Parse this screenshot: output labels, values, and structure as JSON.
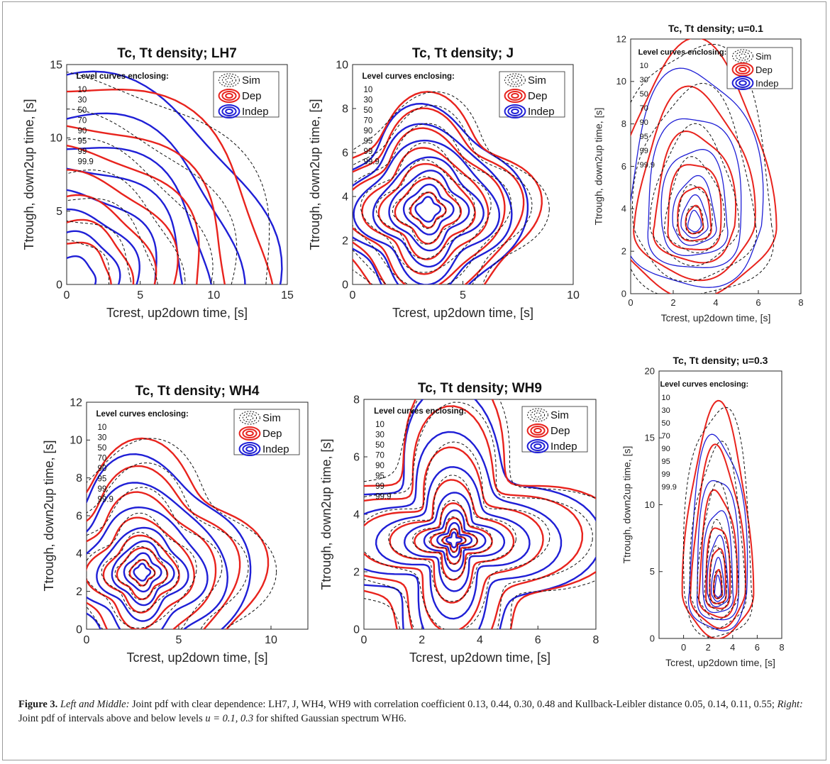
{
  "caption": {
    "label": "Figure 3.",
    "lead": "Left and Middle:",
    "text1": " Joint pdf with clear dependence: LH7, J, WH4, WH9 with correlation coefficient 0.13, 0.44, 0.30, 0.48 and Kullback-Leibler distance 0.05, 0.14, 0.11, 0.55; ",
    "lead2": "Right:",
    "text2": " Joint pdf of intervals above and below levels ",
    "math": "u = 0.1, 0.3",
    "text3": " for shifted Gaussian spectrum WH6."
  },
  "colors": {
    "sim": "#111111",
    "dep": "#e8231d",
    "indep": "#1f1fd6"
  },
  "chart_data": [
    {
      "type": "contour",
      "title": "Tc, Tt density; LH7",
      "xlabel": "Tcrest, up2down time, [s]",
      "ylabel": "Ttrough, down2up time, [s]",
      "xlim": [
        0,
        15
      ],
      "ylim": [
        0,
        15
      ],
      "xticks": [
        0,
        5,
        10,
        15
      ],
      "yticks": [
        0,
        5,
        10,
        15
      ],
      "center": [
        0.3,
        0.3
      ],
      "level_title": "Level curves enclosing:",
      "levels": [
        "10",
        "30",
        "50",
        "70",
        "90",
        "95",
        "99",
        "99.9"
      ],
      "legend": [
        "Sim",
        "Dep",
        "Indep"
      ],
      "blue_radii": [
        13.7,
        11.3,
        9.4,
        7.8,
        6.0,
        4.6,
        3.2,
        1.6
      ],
      "red_radii": [
        13.4,
        10.7,
        8.9,
        7.1,
        5.5,
        4.0,
        2.6
      ]
    },
    {
      "type": "contour",
      "title": "Tc, Tt density; J",
      "xlabel": "Tcrest, up2down time, [s]",
      "ylabel": "Ttrough, down2up time, [s]",
      "xlim": [
        0,
        10
      ],
      "ylim": [
        0,
        10
      ],
      "xticks": [
        0,
        5,
        10
      ],
      "yticks": [
        0,
        2,
        4,
        6,
        8,
        10
      ],
      "center": [
        3.4,
        3.4
      ],
      "level_title": "Level curves enclosing:",
      "levels": [
        "10",
        "30",
        "50",
        "70",
        "90",
        "95",
        "99",
        "99.9"
      ],
      "legend": [
        "Sim",
        "Dep",
        "Indep"
      ],
      "blue_radii": [
        0.5,
        1.0,
        1.6,
        2.2,
        2.9,
        3.5,
        4.2
      ],
      "red_radii": [
        0.7,
        1.3,
        1.9,
        2.5,
        3.2,
        3.9,
        4.5
      ]
    },
    {
      "type": "contour",
      "title": "Tc, Tt density; u=0.1",
      "xlabel": "Tcrest, up2down time, [s]",
      "ylabel": "Ttrough, down2up time, [s]",
      "xlim": [
        0,
        8
      ],
      "ylim": [
        0,
        12
      ],
      "xticks": [
        0,
        2,
        4,
        6,
        8
      ],
      "yticks": [
        0,
        2,
        4,
        6,
        8,
        10,
        12
      ],
      "center": [
        3.0,
        3.2
      ],
      "level_title": "Level curves enclosing:",
      "levels": [
        "10",
        "30",
        "50",
        "70",
        "90",
        "95",
        "99",
        "99.9"
      ],
      "legend": [
        "Sim",
        "Dep",
        "Indep"
      ],
      "blue_radii": [
        0.3,
        0.6,
        1.0,
        1.6,
        2.3,
        3.2
      ],
      "red_radii": [
        0.4,
        0.8,
        1.3,
        1.9,
        2.7,
        3.6
      ]
    },
    {
      "type": "contour",
      "title": "Tc, Tt density; WH4",
      "xlabel": "Tcrest, up2down time, [s]",
      "ylabel": "Ttrough, down2up time, [s]",
      "xlim": [
        0,
        12
      ],
      "ylim": [
        0,
        12
      ],
      "xticks": [
        0,
        5,
        10
      ],
      "yticks": [
        0,
        2,
        4,
        6,
        8,
        10,
        12
      ],
      "center": [
        3.0,
        3.0
      ],
      "level_title": "Level curves enclosing:",
      "levels": [
        "10",
        "30",
        "50",
        "70",
        "90",
        "95",
        "99",
        "99.9"
      ],
      "legend": [
        "Sim",
        "Dep",
        "Indep"
      ],
      "blue_radii": [
        0.4,
        0.9,
        1.5,
        2.2,
        3.2,
        4.3,
        5.5
      ],
      "red_radii": [
        0.6,
        1.2,
        1.8,
        2.6,
        3.7,
        4.8,
        6.0
      ]
    },
    {
      "type": "contour",
      "title": "Tc, Tt density; WH9",
      "xlabel": "Tcrest, up2down time, [s]",
      "ylabel": "Ttrough, down2up time, [s]",
      "xlim": [
        0,
        8
      ],
      "ylim": [
        0,
        8
      ],
      "xticks": [
        0,
        2,
        4,
        6,
        8
      ],
      "yticks": [
        0,
        2,
        4,
        6,
        8
      ],
      "center": [
        3.1,
        3.1
      ],
      "level_title": "Level curves enclosing:",
      "levels": [
        "10",
        "30",
        "50",
        "70",
        "90",
        "95",
        "99",
        "99.9"
      ],
      "legend": [
        "Sim",
        "Dep",
        "Indep"
      ],
      "blue_radii": [
        0.2,
        0.45,
        0.8,
        1.3,
        2.0,
        2.9,
        4.0
      ],
      "red_radii": [
        0.3,
        0.6,
        1.0,
        1.6,
        2.4,
        3.4,
        4.3
      ]
    },
    {
      "type": "contour",
      "title": "Tc, Tt density; u=0.3",
      "xlabel": "Tcrest, up2down time, [s]",
      "ylabel": "Ttrough, down2up time, [s]",
      "xlim": [
        -2,
        8
      ],
      "ylim": [
        0,
        20
      ],
      "xticks": [
        0,
        2,
        4,
        6,
        8
      ],
      "yticks": [
        0,
        5,
        10,
        15,
        20
      ],
      "center": [
        2.8,
        3.4
      ],
      "level_title": "Level curves enclosing:",
      "levels": [
        "10",
        "30",
        "50",
        "70",
        "90",
        "95",
        "99",
        "99.9"
      ],
      "legend": [],
      "blue_radii": [
        0.3,
        0.6,
        1.0,
        1.5,
        2.1,
        2.8
      ],
      "red_radii": [
        0.4,
        0.8,
        1.2,
        1.8,
        2.5,
        3.2
      ]
    }
  ]
}
